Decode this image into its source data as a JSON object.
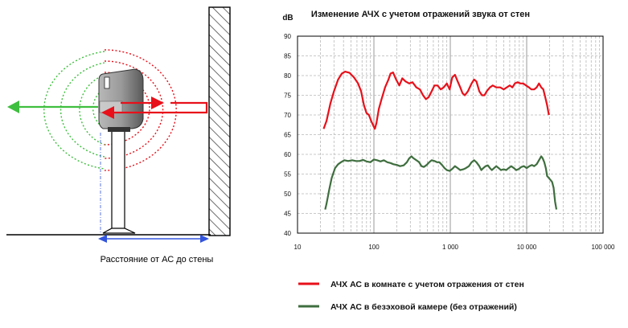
{
  "figure": {
    "diagram_caption": "Расстояние от АС до стены",
    "colors": {
      "room": "#e8101a",
      "anechoic": "#3f6e3f",
      "wave_green": "#3fbf3f",
      "wave_red": "#e8101a",
      "arrow_blue": "#3355dd",
      "grid_minor": "#b8b8b8",
      "grid_major": "#9a9a9a"
    },
    "icons": [
      "wall-hatched-icon",
      "speaker-on-stand-icon",
      "sound-wave-icon",
      "arrow-left-icon",
      "arrow-right-icon",
      "double-arrow-icon"
    ]
  },
  "chart_data": {
    "type": "line",
    "title": "Изменение АЧХ с учетом отражений звука от стен",
    "ylabel": "dB",
    "xlabel": "",
    "xscale": "log",
    "xlim": [
      10,
      100000
    ],
    "ylim": [
      40,
      90
    ],
    "xticks": [
      {
        "value": 10,
        "label": "10"
      },
      {
        "value": 100,
        "label": "100"
      },
      {
        "value": 1000,
        "label": "1 000"
      },
      {
        "value": 10000,
        "label": "10 000"
      },
      {
        "value": 100000,
        "label": "100 000"
      }
    ],
    "yticks": [
      40,
      45,
      50,
      55,
      60,
      65,
      70,
      75,
      80,
      85,
      90
    ],
    "grid": true,
    "legend_position": "bottom",
    "series": [
      {
        "name": "АЧХ АС в комнате с учетом отражения от стен",
        "color": "#e8101a",
        "points": [
          [
            22,
            66.5
          ],
          [
            24,
            68.5
          ],
          [
            27,
            73
          ],
          [
            30,
            76
          ],
          [
            34,
            79
          ],
          [
            38,
            80.5
          ],
          [
            42,
            81
          ],
          [
            48,
            80.7
          ],
          [
            55,
            79.5
          ],
          [
            62,
            78
          ],
          [
            68,
            76
          ],
          [
            74,
            72.5
          ],
          [
            80,
            70.5
          ],
          [
            86,
            70
          ],
          [
            92,
            68.5
          ],
          [
            98,
            67.3
          ],
          [
            103,
            66.5
          ],
          [
            108,
            68
          ],
          [
            116,
            71.5
          ],
          [
            126,
            74
          ],
          [
            140,
            77
          ],
          [
            155,
            79
          ],
          [
            165,
            80.5
          ],
          [
            178,
            80.8
          ],
          [
            195,
            79
          ],
          [
            215,
            77.5
          ],
          [
            235,
            79.3
          ],
          [
            260,
            78.5
          ],
          [
            290,
            78
          ],
          [
            320,
            78.3
          ],
          [
            360,
            77
          ],
          [
            400,
            76.5
          ],
          [
            440,
            75
          ],
          [
            480,
            74
          ],
          [
            520,
            74.5
          ],
          [
            570,
            76
          ],
          [
            620,
            77.5
          ],
          [
            680,
            77.5
          ],
          [
            750,
            76.5
          ],
          [
            820,
            77
          ],
          [
            900,
            78
          ],
          [
            980,
            76.5
          ],
          [
            1060,
            79.5
          ],
          [
            1150,
            80.2
          ],
          [
            1250,
            78.5
          ],
          [
            1350,
            77
          ],
          [
            1450,
            75.5
          ],
          [
            1550,
            75
          ],
          [
            1700,
            76
          ],
          [
            1900,
            78
          ],
          [
            2050,
            79
          ],
          [
            2200,
            78.5
          ],
          [
            2400,
            76
          ],
          [
            2600,
            75
          ],
          [
            2800,
            75
          ],
          [
            3000,
            76
          ],
          [
            3300,
            77
          ],
          [
            3600,
            77.5
          ],
          [
            4000,
            77
          ],
          [
            4500,
            77
          ],
          [
            5000,
            76.5
          ],
          [
            5500,
            77
          ],
          [
            6000,
            77.5
          ],
          [
            6500,
            77
          ],
          [
            7000,
            78
          ],
          [
            7600,
            78.3
          ],
          [
            8300,
            78
          ],
          [
            9000,
            78
          ],
          [
            9800,
            77.5
          ],
          [
            10700,
            77
          ],
          [
            11500,
            76.5
          ],
          [
            12500,
            76.5
          ],
          [
            13500,
            77
          ],
          [
            14500,
            78
          ],
          [
            15500,
            77
          ],
          [
            16500,
            76.5
          ],
          [
            17500,
            74.5
          ],
          [
            18500,
            72.5
          ],
          [
            19500,
            70
          ]
        ]
      },
      {
        "name": "АЧХ АС в безэховой камере (без отражений)",
        "color": "#3f6e3f",
        "points": [
          [
            23,
            46
          ],
          [
            24,
            47.5
          ],
          [
            26,
            51
          ],
          [
            28,
            54
          ],
          [
            31,
            56.5
          ],
          [
            34,
            57.5
          ],
          [
            37,
            58
          ],
          [
            41,
            58.5
          ],
          [
            46,
            58.3
          ],
          [
            52,
            58.5
          ],
          [
            58,
            58.3
          ],
          [
            65,
            58.3
          ],
          [
            72,
            58.6
          ],
          [
            80,
            58.2
          ],
          [
            90,
            58
          ],
          [
            100,
            58.7
          ],
          [
            110,
            58.5
          ],
          [
            122,
            58.2
          ],
          [
            135,
            58.5
          ],
          [
            150,
            58
          ],
          [
            165,
            57.8
          ],
          [
            180,
            57.5
          ],
          [
            200,
            57.3
          ],
          [
            220,
            57
          ],
          [
            245,
            57.2
          ],
          [
            270,
            58
          ],
          [
            290,
            59
          ],
          [
            310,
            59.5
          ],
          [
            330,
            59
          ],
          [
            360,
            58.5
          ],
          [
            390,
            58
          ],
          [
            420,
            57
          ],
          [
            450,
            56.8
          ],
          [
            490,
            57.3
          ],
          [
            530,
            58
          ],
          [
            570,
            58.5
          ],
          [
            620,
            58.3
          ],
          [
            670,
            58
          ],
          [
            720,
            58
          ],
          [
            780,
            57.3
          ],
          [
            840,
            56.5
          ],
          [
            900,
            56
          ],
          [
            980,
            55.8
          ],
          [
            1060,
            56.3
          ],
          [
            1150,
            57
          ],
          [
            1250,
            56.5
          ],
          [
            1350,
            56
          ],
          [
            1480,
            56.2
          ],
          [
            1600,
            56.5
          ],
          [
            1750,
            57
          ],
          [
            1900,
            58
          ],
          [
            2050,
            58.5
          ],
          [
            2200,
            58
          ],
          [
            2400,
            57
          ],
          [
            2550,
            56
          ],
          [
            2700,
            56.5
          ],
          [
            2900,
            57
          ],
          [
            3100,
            57.2
          ],
          [
            3300,
            56.5
          ],
          [
            3500,
            56
          ],
          [
            3750,
            56.5
          ],
          [
            4000,
            57
          ],
          [
            4300,
            56.5
          ],
          [
            4600,
            56
          ],
          [
            5000,
            56.2
          ],
          [
            5400,
            56
          ],
          [
            5800,
            56.5
          ],
          [
            6300,
            57
          ],
          [
            6800,
            56.5
          ],
          [
            7300,
            56
          ],
          [
            7900,
            56.3
          ],
          [
            8500,
            56.8
          ],
          [
            9200,
            57
          ],
          [
            10000,
            56.5
          ],
          [
            10800,
            57
          ],
          [
            11700,
            57.3
          ],
          [
            12500,
            57
          ],
          [
            13500,
            57.5
          ],
          [
            14500,
            58.5
          ],
          [
            15500,
            59.5
          ],
          [
            16200,
            59
          ],
          [
            17000,
            58
          ],
          [
            17800,
            56.5
          ],
          [
            18500,
            54.5
          ],
          [
            19500,
            54
          ],
          [
            20500,
            53.5
          ],
          [
            21500,
            53
          ],
          [
            22500,
            51.5
          ],
          [
            23500,
            48
          ],
          [
            24500,
            46
          ]
        ]
      }
    ]
  }
}
